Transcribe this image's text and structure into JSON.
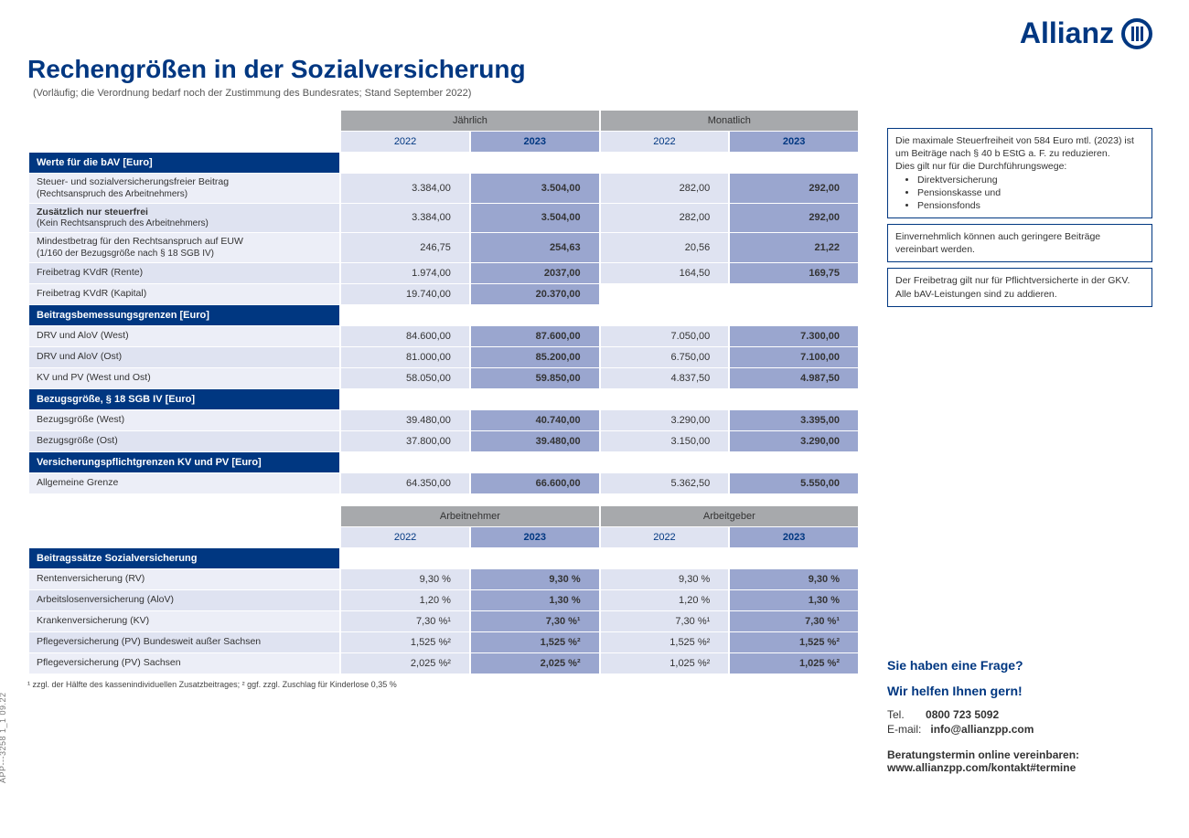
{
  "brand": "Allianz",
  "title": "Rechengrößen in der Sozialversicherung",
  "subtitle": "(Vorläufig; die Verordnung bedarf noch der Zustimmung des Bundesrates; Stand September 2022)",
  "docId": "APP---3258 1_1 09.22",
  "columns": {
    "grp1": "Jährlich",
    "grp2": "Monatlich",
    "y22": "2022",
    "y23": "2023"
  },
  "columns2": {
    "grp1": "Arbeitnehmer",
    "grp2": "Arbeitgeber",
    "y22": "2022",
    "y23": "2023"
  },
  "sec1": {
    "title": "Werte für die bAV [Euro]",
    "rows": [
      {
        "label": "Steuer- und sozialversicherungsfreier Beitrag",
        "sub": "(Rechtsanspruch des Arbeitnehmers)",
        "a22": "3.384,00",
        "a23": "3.504,00",
        "m22": "282,00",
        "m23": "292,00"
      },
      {
        "label": "Zusätzlich nur steuerfrei",
        "sub": "(Kein Rechtsanspruch des Arbeitnehmers)",
        "a22": "3.384,00",
        "a23": "3.504,00",
        "m22": "282,00",
        "m23": "292,00",
        "bold": true
      },
      {
        "label": "Mindestbetrag für den Rechtsanspruch auf EUW",
        "sub": "(1/160 der Bezugsgröße nach § 18 SGB IV)",
        "a22": "246,75",
        "a23": "254,63",
        "m22": "20,56",
        "m23": "21,22"
      },
      {
        "label": "Freibetrag KVdR (Rente)",
        "a22": "1.974,00",
        "a23": "2037,00",
        "m22": "164,50",
        "m23": "169,75"
      },
      {
        "label": "Freibetrag KVdR (Kapital)",
        "a22": "19.740,00",
        "a23": "20.370,00",
        "m22": "",
        "m23": ""
      }
    ]
  },
  "sec2": {
    "title": "Beitragsbemessungsgrenzen [Euro]",
    "rows": [
      {
        "label": "DRV und AloV (West)",
        "a22": "84.600,00",
        "a23": "87.600,00",
        "m22": "7.050,00",
        "m23": "7.300,00"
      },
      {
        "label": "DRV und AloV (Ost)",
        "a22": "81.000,00",
        "a23": "85.200,00",
        "m22": "6.750,00",
        "m23": "7.100,00"
      },
      {
        "label": "KV und PV (West und Ost)",
        "a22": "58.050,00",
        "a23": "59.850,00",
        "m22": "4.837,50",
        "m23": "4.987,50"
      }
    ]
  },
  "sec3": {
    "title": "Bezugsgröße, § 18 SGB IV [Euro]",
    "rows": [
      {
        "label": "Bezugsgröße (West)",
        "a22": "39.480,00",
        "a23": "40.740,00",
        "m22": "3.290,00",
        "m23": "3.395,00"
      },
      {
        "label": "Bezugsgröße (Ost)",
        "a22": "37.800,00",
        "a23": "39.480,00",
        "m22": "3.150,00",
        "m23": "3.290,00"
      }
    ]
  },
  "sec4": {
    "title": "Versicherungspflichtgrenzen KV und PV [Euro]",
    "rows": [
      {
        "label": "Allgemeine Grenze",
        "a22": "64.350,00",
        "a23": "66.600,00",
        "m22": "5.362,50",
        "m23": "5.550,00"
      }
    ]
  },
  "sec5": {
    "title": "Beitragssätze Sozialversicherung",
    "rows": [
      {
        "label": "Rentenversicherung (RV)",
        "a22": "9,30 %",
        "a23": "9,30 %",
        "m22": "9,30 %",
        "m23": "9,30 %"
      },
      {
        "label": "Arbeitslosenversicherung (AloV)",
        "a22": "1,20 %",
        "a23": "1,30 %",
        "m22": "1,20 %",
        "m23": "1,30 %"
      },
      {
        "label": "Krankenversicherung (KV)",
        "a22": "7,30 %¹",
        "a23": "7,30 %¹",
        "m22": "7,30 %¹",
        "m23": "7,30 %¹"
      },
      {
        "label": "Pflegeversicherung (PV) Bundesweit außer Sachsen",
        "a22": "1,525 %²",
        "a23": "1,525 %²",
        "m22": "1,525 %²",
        "m23": "1,525 %²"
      },
      {
        "label": "Pflegeversicherung (PV) Sachsen",
        "a22": "2,025 %²",
        "a23": "2,025 %²",
        "m22": "1,025 %²",
        "m23": "1,025 %²"
      }
    ]
  },
  "footnote": "¹ zzgl. der Hälfte des kassenindividuellen Zusatzbeitrages;  ² ggf. zzgl. Zuschlag für Kinderlose 0,35 %",
  "box1": {
    "p1": "Die maximale Steuerfreiheit von 584 Euro mtl. (2023) ist um Beiträge nach § 40 b EStG a. F. zu reduzieren.",
    "p2": "Dies gilt nur für die Durchführungswege:",
    "b1": "Direktversicherung",
    "b2": "Pensionskasse und",
    "b3": "Pensionsfonds"
  },
  "box2": "Einvernehmlich können auch geringere Beiträge vereinbart werden.",
  "box3": "Der Freibetrag gilt nur für Pflichtversicherte in der GKV. Alle bAV-Leistungen sind zu addieren.",
  "contact": {
    "h1": "Sie haben eine Frage?",
    "h2": "Wir helfen Ihnen gern!",
    "telL": "Tel.",
    "tel": "0800 723 5092",
    "mailL": "E-mail:",
    "mail": "info@allianzpp.com",
    "app": "Beratungstermin online vereinbaren:",
    "url": "www.allianzpp.com/kontakt#termine"
  }
}
